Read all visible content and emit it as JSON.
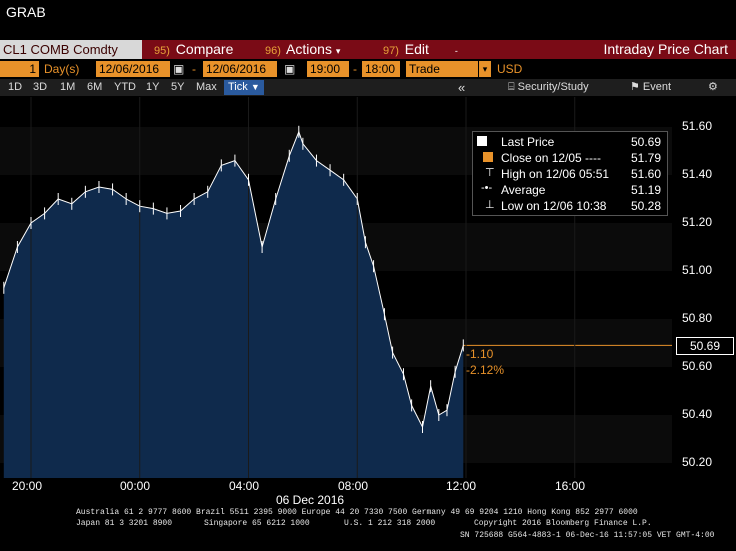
{
  "app": {
    "command": "GRAB"
  },
  "ticker_bar": {
    "ticker": "CL1 COMB Comdty",
    "compare": {
      "num": "95)",
      "label": "Compare"
    },
    "actions": {
      "num": "96)",
      "label": "Actions"
    },
    "edit": {
      "num": "97)",
      "label": "Edit"
    },
    "title": "Intraday Price Chart"
  },
  "settings_row": {
    "period_count": "1",
    "period_unit": "Day(s)",
    "start_date": "12/06/2016",
    "end_date": "12/06/2016",
    "start_time": "19:00",
    "end_time": "18:00",
    "data_type": "Trade",
    "currency": "USD"
  },
  "toolbar": {
    "ranges": [
      "1D",
      "3D",
      "1M",
      "6M",
      "YTD",
      "1Y",
      "5Y",
      "Max"
    ],
    "tick_label": "Tick",
    "security_study": "Security/Study",
    "event": "Event",
    "collapse": "«"
  },
  "legend": {
    "rows": [
      {
        "label": "Last Price",
        "value": "50.69"
      },
      {
        "label": "Close on 12/05 ----",
        "value": "51.79"
      },
      {
        "label": "High on 12/06 05:51",
        "value": "51.60"
      },
      {
        "label": "Average",
        "value": "51.19"
      },
      {
        "label": "Low on 12/06 10:38",
        "value": "50.28"
      }
    ]
  },
  "last_price_box": "50.69",
  "change_abs": "-1.10",
  "change_pct": "-2.12%",
  "footer": {
    "line1": "Australia 61 2 9777 8600 Brazil 5511 2395 9000 Europe 44 20 7330 7500 Germany 49 69 9204 1210 Hong Kong 852 2977 6000",
    "line2_left": "Japan 81 3 3201 8900",
    "line2_mid": "Singapore 65 6212 1000",
    "line2_us": "U.S. 1 212 318 2000",
    "line2_right": "Copyright 2016 Bloomberg Finance L.P.",
    "line3": "SN 725688 G564-4883-1 06-Dec-16 11:57:05 VET  GMT-4:00"
  },
  "colors": {
    "area_fill": "#0f2a4c",
    "price_line": "#ffffff",
    "last_line": "#e8922a",
    "header_red": "#7a0b16",
    "field_orange": "#e8922a"
  },
  "chart_data": {
    "type": "line",
    "title": "",
    "ylabel": "",
    "xlabel": "06 Dec 2016",
    "ylim": [
      50.16,
      51.7
    ],
    "yticks": [
      "51.60",
      "51.40",
      "51.20",
      "51.00",
      "50.80",
      "50.60",
      "50.40",
      "50.20"
    ],
    "xticks": [
      "20:00",
      "00:00",
      "04:00",
      "08:00",
      "12:00",
      "16:00"
    ],
    "x_hours": [
      19,
      19.5,
      20,
      20.5,
      21,
      21.5,
      22,
      22.5,
      23,
      23.5,
      24,
      24.5,
      25,
      25.5,
      26,
      26.5,
      27,
      27.5,
      28,
      28.5,
      29,
      29.5,
      29.85,
      30,
      30.5,
      31,
      31.5,
      32,
      32.3,
      32.6,
      33,
      33.3,
      33.7,
      34,
      34.4,
      34.7,
      35,
      35.3,
      35.6,
      35.9
    ],
    "series": [
      {
        "values": [
          50.93,
          51.1,
          51.2,
          51.24,
          51.3,
          51.28,
          51.33,
          51.35,
          51.34,
          51.3,
          51.27,
          51.26,
          51.24,
          51.25,
          51.3,
          51.33,
          51.44,
          51.46,
          51.38,
          51.1,
          51.3,
          51.48,
          51.58,
          51.53,
          51.46,
          51.42,
          51.38,
          51.3,
          51.12,
          51.02,
          50.82,
          50.66,
          50.57,
          50.44,
          50.35,
          50.52,
          50.4,
          50.42,
          50.58,
          50.69
        ]
      }
    ],
    "reference_lines": {
      "last_price": 50.69,
      "close_12_05": 51.79
    }
  }
}
